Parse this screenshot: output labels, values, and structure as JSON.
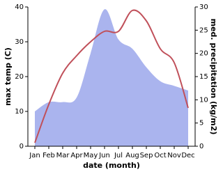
{
  "chart_data": {
    "type": "line",
    "categories": [
      "Jan",
      "Feb",
      "Mar",
      "Apr",
      "May",
      "Jun",
      "Jul",
      "Aug",
      "Sep",
      "Oct",
      "Nov",
      "Dec"
    ],
    "series": [
      {
        "type": "area",
        "axis": "y2",
        "color": "#aab4ee",
        "values": [
          7.5,
          9.5,
          9.5,
          10.5,
          20,
          29.5,
          23,
          21,
          17,
          14,
          13,
          12
        ]
      },
      {
        "type": "line",
        "axis": "y",
        "color": "#c0505a",
        "values": [
          1,
          12,
          21,
          26,
          30,
          33,
          33,
          39,
          36,
          28,
          24,
          11
        ]
      }
    ],
    "ylabel": "max temp (C)",
    "y2label": "med. precipitation (kg/m2)",
    "xlabel": "date (month)",
    "ylim": [
      0,
      40
    ],
    "yticks": [
      0,
      10,
      20,
      30,
      40
    ],
    "y2lim": [
      0,
      30
    ],
    "y2ticks": [
      0,
      5,
      10,
      15,
      20,
      25,
      30
    ]
  }
}
